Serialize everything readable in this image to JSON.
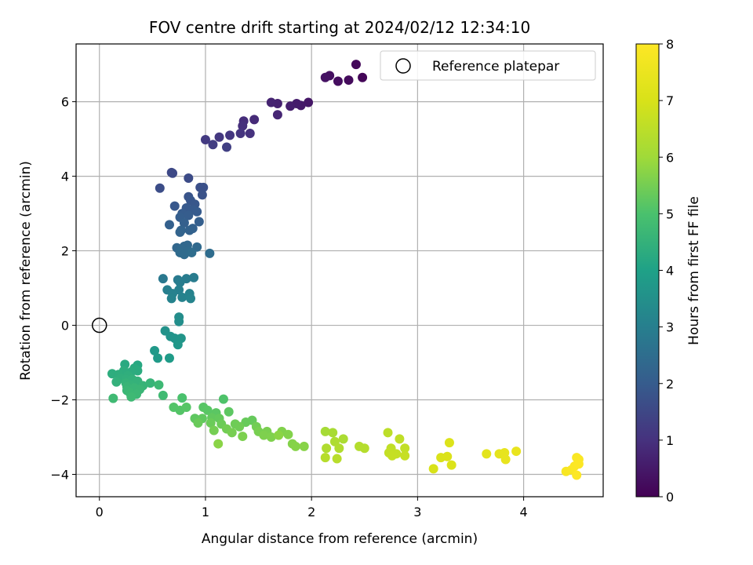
{
  "chart_data": {
    "type": "scatter",
    "title": "FOV centre drift starting at 2024/02/12 12:34:10",
    "xlabel": "Angular distance from reference (arcmin)",
    "ylabel": "Rotation from reference (arcmin)",
    "xlim": [
      -0.22,
      4.75
    ],
    "ylim": [
      -4.6,
      7.55
    ],
    "xticks": [
      0,
      1,
      2,
      3,
      4
    ],
    "xtick_labels": [
      "0",
      "1",
      "2",
      "3",
      "4"
    ],
    "yticks": [
      -4,
      -2,
      0,
      2,
      4,
      6
    ],
    "ytick_labels": [
      "−4",
      "−2",
      "0",
      "2",
      "4",
      "6"
    ],
    "grid": true,
    "legend": {
      "position": "top-right",
      "entries": [
        "Reference platepar"
      ]
    },
    "reference_point": {
      "x": 0,
      "y": 0,
      "label": "Reference platepar"
    },
    "colorbar": {
      "label": "Hours from first FF file",
      "colormap": "viridis",
      "range": [
        0,
        8
      ],
      "ticks": [
        0,
        1,
        2,
        3,
        4,
        5,
        6,
        7,
        8
      ],
      "tick_labels": [
        "0",
        "1",
        "2",
        "3",
        "4",
        "5",
        "6",
        "7",
        "8"
      ]
    },
    "points": [
      {
        "x": 2.48,
        "y": 6.65,
        "t": 0.1
      },
      {
        "x": 2.42,
        "y": 7.0,
        "t": 0.15
      },
      {
        "x": 2.35,
        "y": 6.58,
        "t": 0.2
      },
      {
        "x": 2.25,
        "y": 6.55,
        "t": 0.25
      },
      {
        "x": 2.17,
        "y": 6.7,
        "t": 0.3
      },
      {
        "x": 2.13,
        "y": 6.65,
        "t": 0.35
      },
      {
        "x": 1.97,
        "y": 5.98,
        "t": 0.45
      },
      {
        "x": 1.9,
        "y": 5.9,
        "t": 0.5
      },
      {
        "x": 1.86,
        "y": 5.95,
        "t": 0.55
      },
      {
        "x": 1.8,
        "y": 5.88,
        "t": 0.6
      },
      {
        "x": 1.68,
        "y": 5.95,
        "t": 0.65
      },
      {
        "x": 1.62,
        "y": 5.98,
        "t": 0.7
      },
      {
        "x": 1.68,
        "y": 5.65,
        "t": 0.75
      },
      {
        "x": 1.46,
        "y": 5.52,
        "t": 0.85
      },
      {
        "x": 1.36,
        "y": 5.48,
        "t": 0.9
      },
      {
        "x": 1.35,
        "y": 5.35,
        "t": 0.95
      },
      {
        "x": 1.42,
        "y": 5.15,
        "t": 1.0
      },
      {
        "x": 1.33,
        "y": 5.15,
        "t": 1.05
      },
      {
        "x": 1.23,
        "y": 5.1,
        "t": 1.1
      },
      {
        "x": 1.13,
        "y": 5.05,
        "t": 1.15
      },
      {
        "x": 1.0,
        "y": 4.98,
        "t": 1.2
      },
      {
        "x": 1.07,
        "y": 4.85,
        "t": 1.25
      },
      {
        "x": 1.2,
        "y": 4.78,
        "t": 1.3
      },
      {
        "x": 0.68,
        "y": 4.1,
        "t": 1.5
      },
      {
        "x": 0.69,
        "y": 4.08,
        "t": 1.55
      },
      {
        "x": 0.84,
        "y": 3.95,
        "t": 1.6
      },
      {
        "x": 0.57,
        "y": 3.68,
        "t": 1.65
      },
      {
        "x": 0.95,
        "y": 3.7,
        "t": 1.7
      },
      {
        "x": 0.98,
        "y": 3.7,
        "t": 1.72
      },
      {
        "x": 0.97,
        "y": 3.5,
        "t": 1.75
      },
      {
        "x": 0.84,
        "y": 3.45,
        "t": 1.8
      },
      {
        "x": 0.86,
        "y": 3.35,
        "t": 1.85
      },
      {
        "x": 0.9,
        "y": 3.25,
        "t": 1.88
      },
      {
        "x": 0.71,
        "y": 3.2,
        "t": 1.9
      },
      {
        "x": 0.82,
        "y": 3.15,
        "t": 1.92
      },
      {
        "x": 0.88,
        "y": 3.1,
        "t": 1.95
      },
      {
        "x": 0.92,
        "y": 3.05,
        "t": 1.98
      },
      {
        "x": 0.78,
        "y": 3.0,
        "t": 2.0
      },
      {
        "x": 0.84,
        "y": 2.95,
        "t": 2.02
      },
      {
        "x": 0.76,
        "y": 2.9,
        "t": 2.05
      },
      {
        "x": 0.94,
        "y": 2.78,
        "t": 2.08
      },
      {
        "x": 0.8,
        "y": 2.75,
        "t": 2.1
      },
      {
        "x": 0.66,
        "y": 2.7,
        "t": 2.12
      },
      {
        "x": 0.88,
        "y": 2.6,
        "t": 2.15
      },
      {
        "x": 0.85,
        "y": 2.55,
        "t": 2.18
      },
      {
        "x": 0.77,
        "y": 2.55,
        "t": 2.2
      },
      {
        "x": 0.76,
        "y": 2.5,
        "t": 2.22
      },
      {
        "x": 0.73,
        "y": 2.08,
        "t": 2.3
      },
      {
        "x": 0.8,
        "y": 2.12,
        "t": 2.32
      },
      {
        "x": 0.83,
        "y": 2.15,
        "t": 2.34
      },
      {
        "x": 0.77,
        "y": 2.05,
        "t": 2.36
      },
      {
        "x": 0.92,
        "y": 2.1,
        "t": 2.38
      },
      {
        "x": 0.84,
        "y": 2.0,
        "t": 2.4
      },
      {
        "x": 0.76,
        "y": 1.95,
        "t": 2.42
      },
      {
        "x": 0.8,
        "y": 1.9,
        "t": 2.44
      },
      {
        "x": 1.04,
        "y": 1.93,
        "t": 2.46
      },
      {
        "x": 0.87,
        "y": 1.95,
        "t": 2.48
      },
      {
        "x": 0.6,
        "y": 1.25,
        "t": 2.8
      },
      {
        "x": 0.74,
        "y": 1.22,
        "t": 2.85
      },
      {
        "x": 0.89,
        "y": 1.28,
        "t": 2.9
      },
      {
        "x": 0.82,
        "y": 1.25,
        "t": 2.92
      },
      {
        "x": 0.76,
        "y": 1.15,
        "t": 2.95
      },
      {
        "x": 0.64,
        "y": 0.95,
        "t": 3.0
      },
      {
        "x": 0.75,
        "y": 0.95,
        "t": 3.02
      },
      {
        "x": 0.69,
        "y": 0.85,
        "t": 3.05
      },
      {
        "x": 0.85,
        "y": 0.85,
        "t": 3.08
      },
      {
        "x": 0.78,
        "y": 0.75,
        "t": 3.1
      },
      {
        "x": 0.68,
        "y": 0.72,
        "t": 3.12
      },
      {
        "x": 0.86,
        "y": 0.72,
        "t": 3.14
      },
      {
        "x": 0.75,
        "y": 0.22,
        "t": 3.4
      },
      {
        "x": 0.75,
        "y": 0.1,
        "t": 3.45
      },
      {
        "x": 0.62,
        "y": -0.15,
        "t": 3.55
      },
      {
        "x": 0.67,
        "y": -0.3,
        "t": 3.6
      },
      {
        "x": 0.71,
        "y": -0.35,
        "t": 3.62
      },
      {
        "x": 0.77,
        "y": -0.35,
        "t": 3.65
      },
      {
        "x": 0.74,
        "y": -0.52,
        "t": 3.7
      },
      {
        "x": 0.52,
        "y": -0.68,
        "t": 3.75
      },
      {
        "x": 0.55,
        "y": -0.88,
        "t": 3.8
      },
      {
        "x": 0.66,
        "y": -0.88,
        "t": 3.82
      },
      {
        "x": 0.36,
        "y": -1.07,
        "t": 4.2
      },
      {
        "x": 0.24,
        "y": -1.05,
        "t": 4.25
      },
      {
        "x": 0.33,
        "y": -1.15,
        "t": 4.28
      },
      {
        "x": 0.36,
        "y": -1.22,
        "t": 4.3
      },
      {
        "x": 0.3,
        "y": -1.25,
        "t": 4.32
      },
      {
        "x": 0.23,
        "y": -1.22,
        "t": 4.34
      },
      {
        "x": 0.12,
        "y": -1.3,
        "t": 4.36
      },
      {
        "x": 0.18,
        "y": -1.32,
        "t": 4.38
      },
      {
        "x": 0.27,
        "y": -1.35,
        "t": 4.4
      },
      {
        "x": 0.2,
        "y": -1.42,
        "t": 4.42
      },
      {
        "x": 0.25,
        "y": -1.45,
        "t": 4.44
      },
      {
        "x": 0.31,
        "y": -1.45,
        "t": 4.46
      },
      {
        "x": 0.16,
        "y": -1.52,
        "t": 4.48
      },
      {
        "x": 0.36,
        "y": -1.5,
        "t": 4.5
      },
      {
        "x": 0.25,
        "y": -1.55,
        "t": 4.52
      },
      {
        "x": 0.29,
        "y": -1.6,
        "t": 4.54
      },
      {
        "x": 0.41,
        "y": -1.62,
        "t": 4.56
      },
      {
        "x": 0.48,
        "y": -1.55,
        "t": 4.58
      },
      {
        "x": 0.26,
        "y": -1.65,
        "t": 4.6
      },
      {
        "x": 0.33,
        "y": -1.68,
        "t": 4.62
      },
      {
        "x": 0.38,
        "y": -1.72,
        "t": 4.64
      },
      {
        "x": 0.26,
        "y": -1.75,
        "t": 4.66
      },
      {
        "x": 0.29,
        "y": -1.82,
        "t": 4.68
      },
      {
        "x": 0.35,
        "y": -1.85,
        "t": 4.7
      },
      {
        "x": 0.56,
        "y": -1.6,
        "t": 4.72
      },
      {
        "x": 0.3,
        "y": -1.92,
        "t": 4.74
      },
      {
        "x": 0.13,
        "y": -1.96,
        "t": 4.76
      },
      {
        "x": 0.6,
        "y": -1.88,
        "t": 4.78
      },
      {
        "x": 0.78,
        "y": -1.95,
        "t": 5.0
      },
      {
        "x": 1.17,
        "y": -1.98,
        "t": 5.05
      },
      {
        "x": 0.7,
        "y": -2.2,
        "t": 5.1
      },
      {
        "x": 0.76,
        "y": -2.28,
        "t": 5.12
      },
      {
        "x": 0.82,
        "y": -2.2,
        "t": 5.14
      },
      {
        "x": 0.98,
        "y": -2.2,
        "t": 5.16
      },
      {
        "x": 1.02,
        "y": -2.28,
        "t": 5.18
      },
      {
        "x": 1.1,
        "y": -2.35,
        "t": 5.2
      },
      {
        "x": 1.22,
        "y": -2.32,
        "t": 5.22
      },
      {
        "x": 0.9,
        "y": -2.5,
        "t": 5.24
      },
      {
        "x": 0.97,
        "y": -2.5,
        "t": 5.26
      },
      {
        "x": 1.06,
        "y": -2.48,
        "t": 5.28
      },
      {
        "x": 1.13,
        "y": -2.5,
        "t": 5.3
      },
      {
        "x": 1.44,
        "y": -2.55,
        "t": 5.32
      },
      {
        "x": 1.38,
        "y": -2.6,
        "t": 5.34
      },
      {
        "x": 0.93,
        "y": -2.62,
        "t": 5.36
      },
      {
        "x": 1.05,
        "y": -2.62,
        "t": 5.38
      },
      {
        "x": 1.15,
        "y": -2.65,
        "t": 5.4
      },
      {
        "x": 1.28,
        "y": -2.65,
        "t": 5.42
      },
      {
        "x": 1.32,
        "y": -2.72,
        "t": 5.44
      },
      {
        "x": 1.48,
        "y": -2.72,
        "t": 5.46
      },
      {
        "x": 1.2,
        "y": -2.78,
        "t": 5.48
      },
      {
        "x": 1.08,
        "y": -2.82,
        "t": 5.5
      },
      {
        "x": 1.25,
        "y": -2.88,
        "t": 5.52
      },
      {
        "x": 1.5,
        "y": -2.85,
        "t": 5.54
      },
      {
        "x": 1.58,
        "y": -2.85,
        "t": 5.56
      },
      {
        "x": 1.35,
        "y": -2.98,
        "t": 5.58
      },
      {
        "x": 1.55,
        "y": -2.95,
        "t": 5.6
      },
      {
        "x": 1.62,
        "y": -3.0,
        "t": 5.62
      },
      {
        "x": 1.72,
        "y": -2.85,
        "t": 5.64
      },
      {
        "x": 1.78,
        "y": -2.93,
        "t": 5.66
      },
      {
        "x": 1.82,
        "y": -3.18,
        "t": 5.68
      },
      {
        "x": 1.85,
        "y": -3.25,
        "t": 5.7
      },
      {
        "x": 1.93,
        "y": -3.25,
        "t": 5.72
      },
      {
        "x": 1.12,
        "y": -3.18,
        "t": 5.74
      },
      {
        "x": 1.69,
        "y": -2.95,
        "t": 5.76
      },
      {
        "x": 2.13,
        "y": -2.85,
        "t": 6.1
      },
      {
        "x": 2.2,
        "y": -2.88,
        "t": 6.15
      },
      {
        "x": 2.3,
        "y": -3.05,
        "t": 6.2
      },
      {
        "x": 2.22,
        "y": -3.12,
        "t": 6.25
      },
      {
        "x": 2.14,
        "y": -3.3,
        "t": 6.28
      },
      {
        "x": 2.26,
        "y": -3.3,
        "t": 6.3
      },
      {
        "x": 2.45,
        "y": -3.25,
        "t": 6.35
      },
      {
        "x": 2.5,
        "y": -3.3,
        "t": 6.38
      },
      {
        "x": 2.13,
        "y": -3.55,
        "t": 6.4
      },
      {
        "x": 2.24,
        "y": -3.58,
        "t": 6.42
      },
      {
        "x": 2.72,
        "y": -2.88,
        "t": 6.5
      },
      {
        "x": 2.83,
        "y": -3.05,
        "t": 6.55
      },
      {
        "x": 2.75,
        "y": -3.3,
        "t": 6.58
      },
      {
        "x": 2.88,
        "y": -3.3,
        "t": 6.6
      },
      {
        "x": 2.73,
        "y": -3.42,
        "t": 6.62
      },
      {
        "x": 2.8,
        "y": -3.45,
        "t": 6.64
      },
      {
        "x": 2.76,
        "y": -3.5,
        "t": 6.66
      },
      {
        "x": 2.88,
        "y": -3.5,
        "t": 6.68
      },
      {
        "x": 3.15,
        "y": -3.85,
        "t": 7.0
      },
      {
        "x": 3.22,
        "y": -3.55,
        "t": 7.05
      },
      {
        "x": 3.28,
        "y": -3.52,
        "t": 7.08
      },
      {
        "x": 3.32,
        "y": -3.75,
        "t": 7.1
      },
      {
        "x": 3.3,
        "y": -3.15,
        "t": 7.12
      },
      {
        "x": 3.65,
        "y": -3.45,
        "t": 7.3
      },
      {
        "x": 3.77,
        "y": -3.45,
        "t": 7.35
      },
      {
        "x": 3.82,
        "y": -3.42,
        "t": 7.4
      },
      {
        "x": 3.83,
        "y": -3.6,
        "t": 7.42
      },
      {
        "x": 3.93,
        "y": -3.38,
        "t": 7.45
      },
      {
        "x": 4.4,
        "y": -3.92,
        "t": 7.85
      },
      {
        "x": 4.45,
        "y": -3.88,
        "t": 7.88
      },
      {
        "x": 4.5,
        "y": -3.55,
        "t": 7.9
      },
      {
        "x": 4.52,
        "y": -3.6,
        "t": 7.92
      },
      {
        "x": 4.48,
        "y": -3.78,
        "t": 7.94
      },
      {
        "x": 4.5,
        "y": -4.02,
        "t": 7.96
      },
      {
        "x": 4.52,
        "y": -3.72,
        "t": 7.98
      }
    ]
  }
}
